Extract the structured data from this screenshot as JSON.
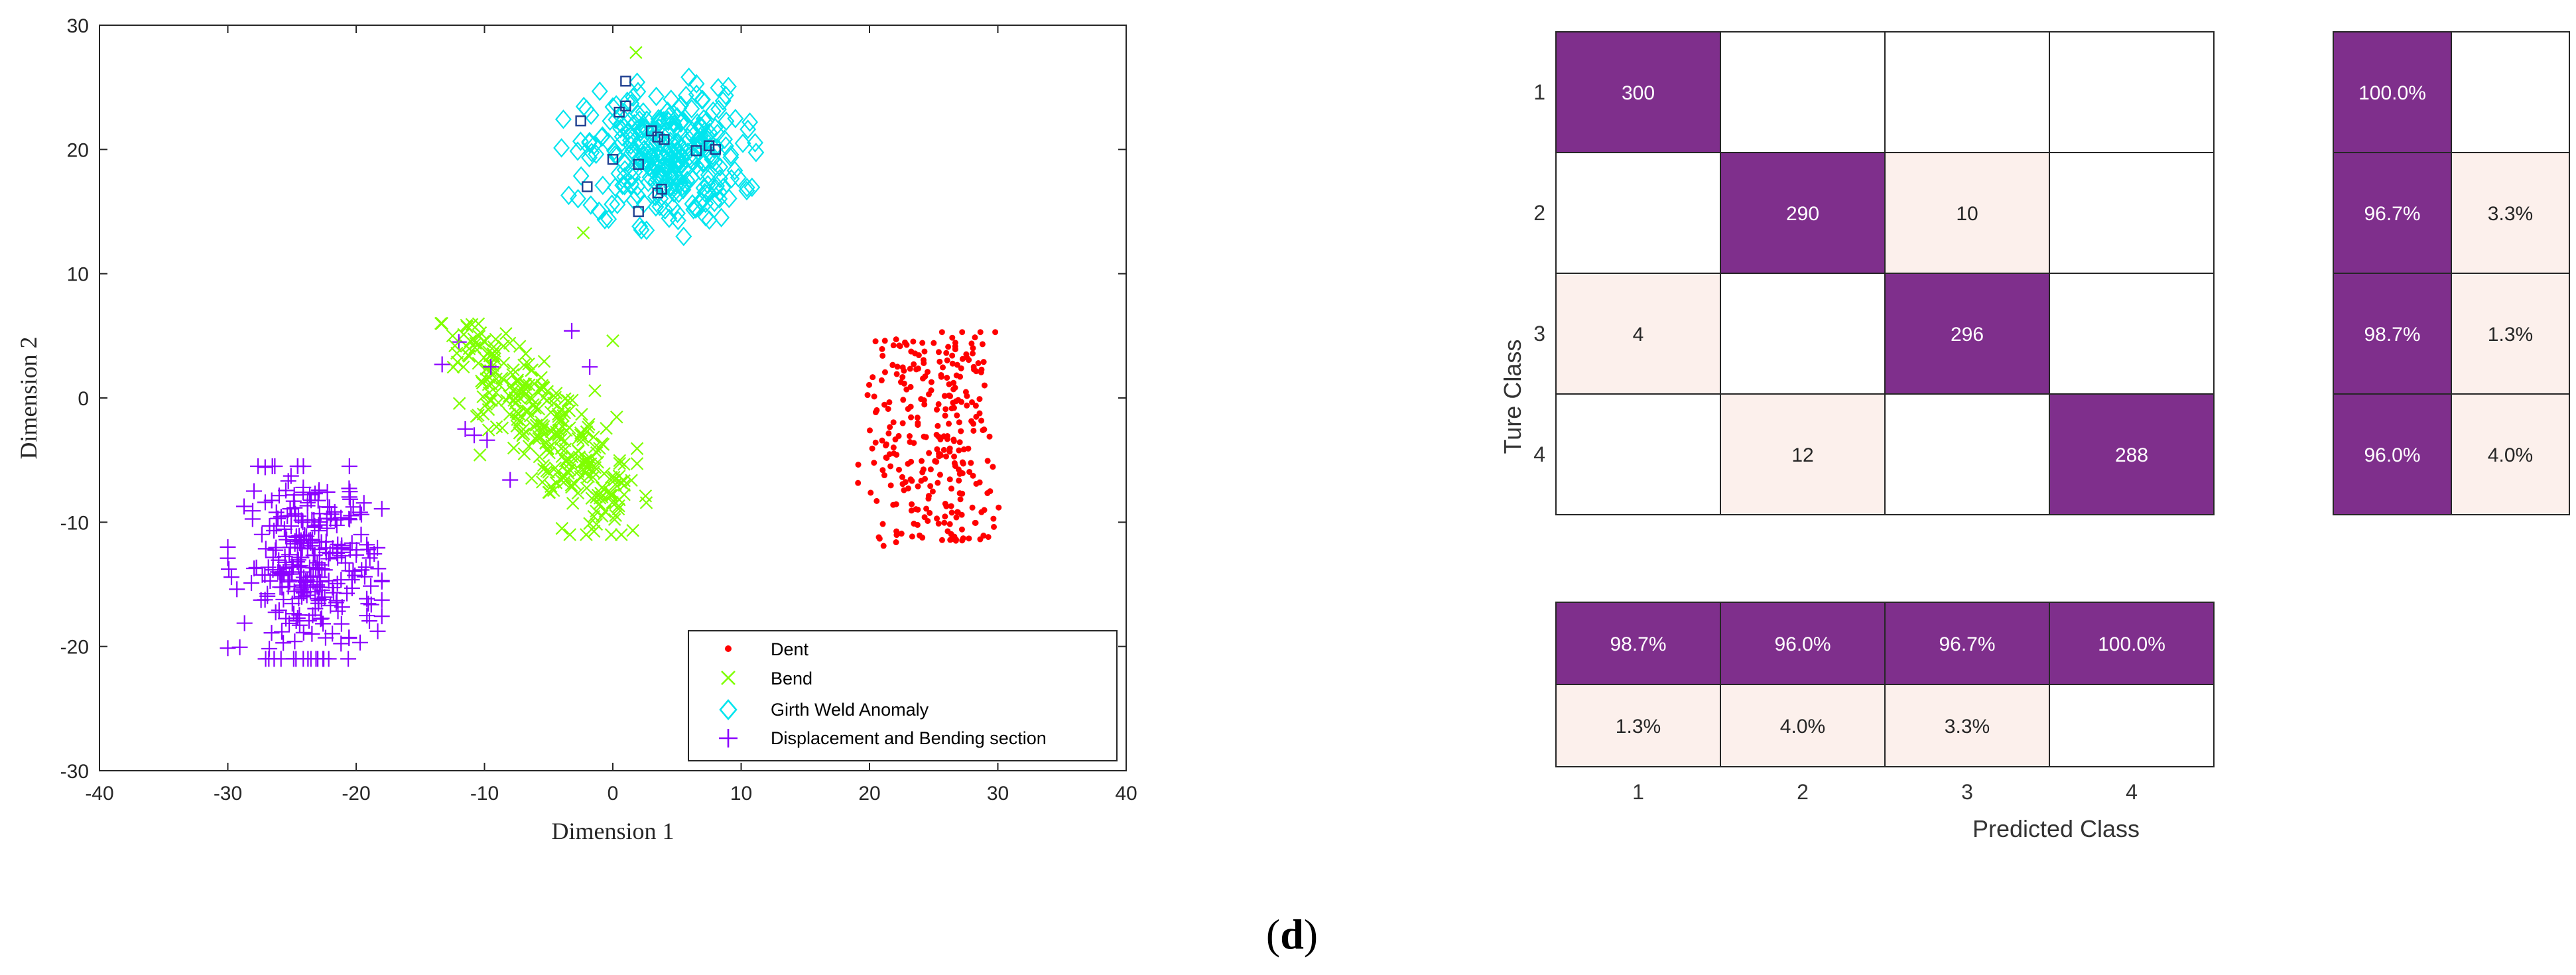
{
  "colors": {
    "dent": "#ff0000",
    "bend": "#7fff00",
    "girth": "#00e5ee",
    "displacement": "#8b00ff",
    "cm_dark": "#7f2f8c",
    "cm_light": "#fcf0ec",
    "cm_white": "#ffffff",
    "marker_square": "#1f3f8f"
  },
  "chart_data": [
    {
      "type": "scatter",
      "title": "",
      "xlabel": "Dimension 1",
      "ylabel": "Dimension 2",
      "xlim": [
        -40,
        40
      ],
      "ylim": [
        -30,
        30
      ],
      "xticks": [
        -40,
        -30,
        -20,
        -10,
        0,
        10,
        20,
        30,
        40
      ],
      "yticks": [
        -30,
        -20,
        -10,
        0,
        10,
        20,
        30
      ],
      "legend_position": "bottom-right",
      "series": [
        {
          "name": "Dent",
          "marker": "dot",
          "count": 300,
          "center": [
            25,
            -3.5
          ],
          "spread": [
            2.2,
            5.5
          ]
        },
        {
          "name": "Bend",
          "marker": "x",
          "count": 300,
          "center": [
            -5,
            -3
          ],
          "spread": [
            3.5,
            3.5
          ]
        },
        {
          "name": "Girth Weld Anomaly",
          "marker": "diamond",
          "count": 300,
          "center": [
            4,
            19.5
          ],
          "spread": [
            3.2,
            3.0
          ]
        },
        {
          "name": "Displacement and Bending section",
          "marker": "plus",
          "count": 300,
          "center": [
            -23.5,
            -13.5
          ],
          "spread": [
            2.7,
            4.0
          ]
        }
      ],
      "annotation_points": {
        "marker": "square",
        "points": [
          [
            1,
            25.5
          ],
          [
            -2.5,
            22.3
          ],
          [
            0.5,
            23
          ],
          [
            1,
            23.5
          ],
          [
            3,
            21.5
          ],
          [
            3.5,
            21
          ],
          [
            4,
            20.8
          ],
          [
            6.5,
            19.9
          ],
          [
            7.5,
            20.3
          ],
          [
            8,
            20
          ],
          [
            0,
            19.2
          ],
          [
            2,
            18.8
          ],
          [
            -2,
            17
          ],
          [
            3.5,
            16.5
          ],
          [
            3.8,
            16.8
          ],
          [
            2,
            15
          ]
        ]
      },
      "outliers": {
        "displacement": [
          [
            -12,
            4.5
          ],
          [
            -13.3,
            2.7
          ],
          [
            -9.5,
            2.5
          ],
          [
            -3.2,
            5.4
          ],
          [
            -1.8,
            2.5
          ],
          [
            -11.5,
            -2.5
          ],
          [
            -10.8,
            -3
          ],
          [
            -8,
            -6.6
          ],
          [
            -9.8,
            -3.4
          ]
        ],
        "bend": [
          [
            1.8,
            27.8
          ],
          [
            -2.3,
            13.3
          ],
          [
            0,
            4.6
          ],
          [
            -12.3,
            4.2
          ]
        ]
      }
    },
    {
      "type": "heatmap",
      "title": "",
      "xlabel": "Predicted Class",
      "ylabel": "Ture Class",
      "categories": [
        "1",
        "2",
        "3",
        "4"
      ],
      "matrix": [
        [
          300,
          0,
          0,
          0
        ],
        [
          0,
          290,
          10,
          0
        ],
        [
          4,
          0,
          296,
          0
        ],
        [
          0,
          12,
          0,
          288
        ]
      ],
      "matrix_labels": [
        [
          "300",
          "",
          "",
          ""
        ],
        [
          "",
          "290",
          "10",
          ""
        ],
        [
          "4",
          "",
          "296",
          ""
        ],
        [
          "",
          "12",
          "",
          "288"
        ]
      ],
      "row_summary": [
        [
          "100.0%",
          ""
        ],
        [
          "96.7%",
          "3.3%"
        ],
        [
          "98.7%",
          "1.3%"
        ],
        [
          "96.0%",
          "4.0%"
        ]
      ],
      "row_summary_values": [
        [
          100.0,
          0
        ],
        [
          96.7,
          3.3
        ],
        [
          98.7,
          1.3
        ],
        [
          96.0,
          4.0
        ]
      ],
      "column_summary": [
        [
          "98.7%",
          "96.0%",
          "96.7%",
          "100.0%"
        ],
        [
          "1.3%",
          "4.0%",
          "3.3%",
          ""
        ]
      ],
      "column_summary_values": [
        [
          98.7,
          96.0,
          96.7,
          100.0
        ],
        [
          1.3,
          4.0,
          3.3,
          0
        ]
      ]
    }
  ],
  "panel_label": {
    "open": "(",
    "letter": "d",
    "close": ")"
  }
}
